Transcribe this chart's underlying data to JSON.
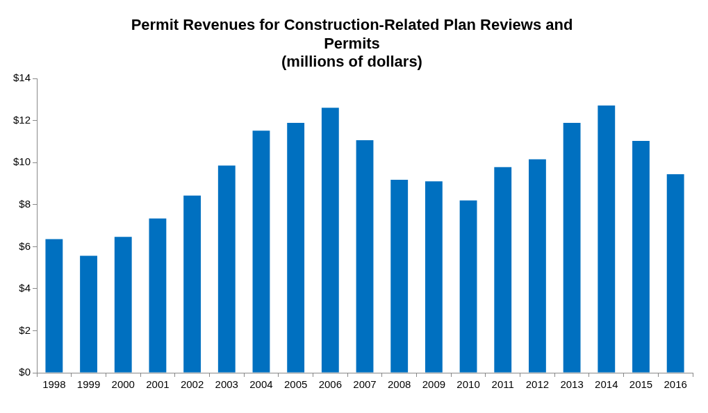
{
  "chart_data": {
    "type": "bar",
    "title": [
      "Permit Revenues for Construction-Related Plan Reviews and",
      "Permits",
      "(millions of dollars)"
    ],
    "categories": [
      "1998",
      "1999",
      "2000",
      "2001",
      "2002",
      "2003",
      "2004",
      "2005",
      "2006",
      "2007",
      "2008",
      "2009",
      "2010",
      "2011",
      "2012",
      "2013",
      "2014",
      "2015",
      "2016"
    ],
    "values": [
      6.36,
      5.57,
      6.47,
      7.34,
      8.43,
      9.86,
      11.52,
      11.89,
      12.61,
      11.07,
      9.18,
      9.11,
      8.2,
      9.79,
      10.16,
      11.89,
      12.72,
      11.03,
      9.45
    ],
    "color": "#0070c0",
    "ylim": [
      0,
      14
    ],
    "yticks": [
      {
        "value": 0,
        "label": "$0"
      },
      {
        "value": 2,
        "label": "$2"
      },
      {
        "value": 4,
        "label": "$4"
      },
      {
        "value": 6,
        "label": "$6"
      },
      {
        "value": 8,
        "label": "$8"
      },
      {
        "value": 10,
        "label": "$10"
      },
      {
        "value": 12,
        "label": "$12"
      },
      {
        "value": 14,
        "label": "$14"
      }
    ],
    "grid": false,
    "legend": false
  }
}
